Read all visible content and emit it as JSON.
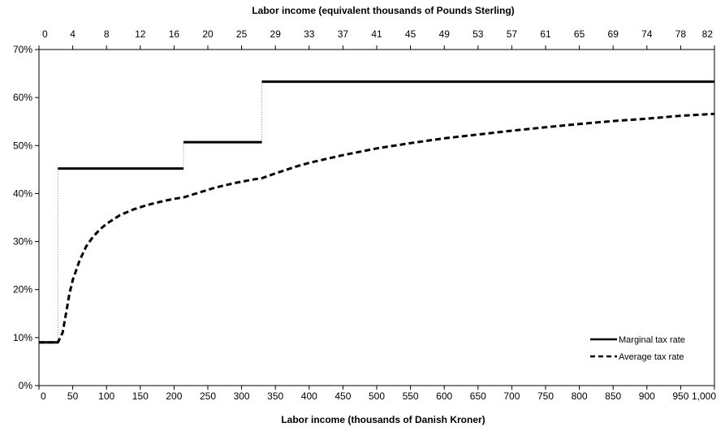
{
  "chart_data": {
    "type": "line",
    "xlabel": "Labor income (thousands of Danish Kroner)",
    "x2label": "Labor income (equivalent thousands of Pounds Sterling)",
    "ylabel": "",
    "xlim": [
      0,
      1000
    ],
    "ylim": [
      0,
      0.7
    ],
    "y_ticks": [
      "0%",
      "10%",
      "20%",
      "30%",
      "40%",
      "50%",
      "60%",
      "70%"
    ],
    "x_ticks": [
      "0",
      "50",
      "100",
      "150",
      "200",
      "250",
      "300",
      "350",
      "400",
      "450",
      "500",
      "550",
      "600",
      "650",
      "700",
      "750",
      "800",
      "850",
      "900",
      "950",
      "1,000"
    ],
    "x2_ticks": [
      "0",
      "4",
      "8",
      "12",
      "16",
      "20",
      "25",
      "29",
      "33",
      "37",
      "41",
      "45",
      "49",
      "53",
      "57",
      "61",
      "65",
      "69",
      "74",
      "78",
      "82"
    ],
    "grid": false,
    "legend_position": "bottom-right",
    "series": [
      {
        "name": "Marginal tax rate",
        "style": "solid",
        "segments": [
          {
            "x": [
              0,
              28
            ],
            "y": [
              0.09,
              0.09
            ]
          },
          {
            "x": [
              28,
              214
            ],
            "y": [
              0.452,
              0.452
            ]
          },
          {
            "x": [
              214,
              330
            ],
            "y": [
              0.507,
              0.507
            ]
          },
          {
            "x": [
              330,
              1000
            ],
            "y": [
              0.633,
              0.633
            ]
          }
        ],
        "jumps": [
          {
            "x": 28,
            "y": [
              0.09,
              0.452
            ]
          },
          {
            "x": 214,
            "y": [
              0.452,
              0.507
            ]
          },
          {
            "x": 330,
            "y": [
              0.507,
              0.633
            ]
          }
        ]
      },
      {
        "name": "Average tax rate",
        "style": "dashed",
        "x": [
          0,
          28,
          35,
          40,
          45,
          50,
          60,
          70,
          80,
          90,
          100,
          120,
          140,
          160,
          180,
          200,
          214,
          230,
          260,
          290,
          320,
          330,
          350,
          380,
          400,
          450,
          500,
          550,
          600,
          650,
          700,
          750,
          800,
          850,
          900,
          950,
          1000
        ],
        "y": [
          0.09,
          0.09,
          0.11,
          0.15,
          0.19,
          0.22,
          0.26,
          0.29,
          0.31,
          0.325,
          0.337,
          0.355,
          0.367,
          0.376,
          0.383,
          0.389,
          0.392,
          0.399,
          0.412,
          0.422,
          0.43,
          0.432,
          0.442,
          0.456,
          0.464,
          0.48,
          0.494,
          0.505,
          0.515,
          0.523,
          0.531,
          0.538,
          0.545,
          0.551,
          0.556,
          0.562,
          0.566
        ]
      }
    ],
    "colors": {
      "line": "#000000",
      "axis": "#000000",
      "jump": "#808080"
    }
  }
}
